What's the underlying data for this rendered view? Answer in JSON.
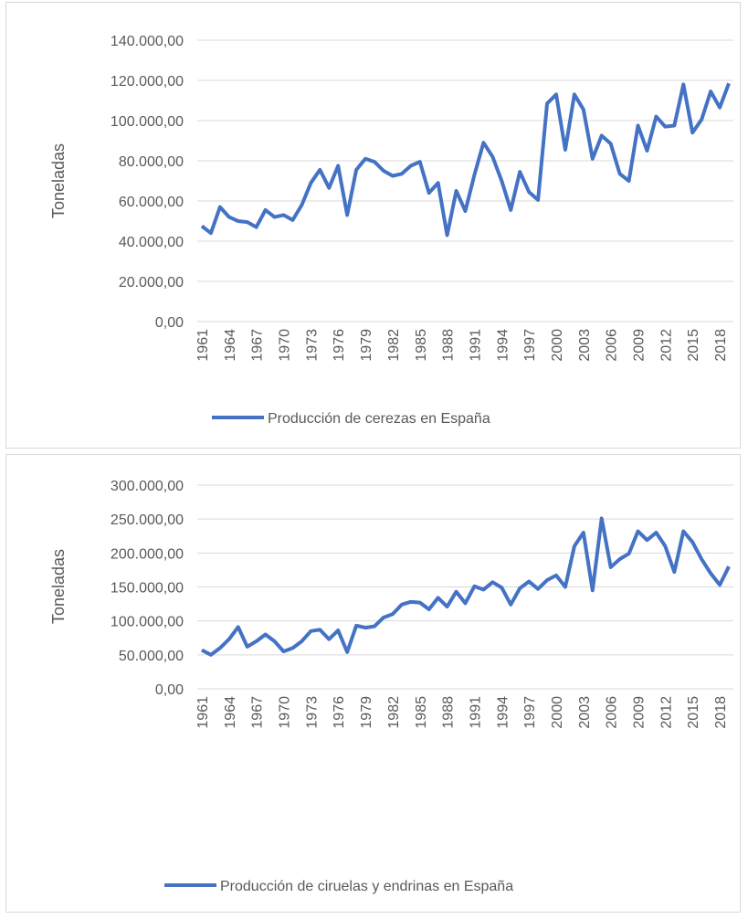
{
  "chart_data": [
    {
      "type": "line",
      "y_label": "Toneladas",
      "grid": true,
      "legend": "bottom",
      "categories": [
        "1961",
        null,
        null,
        "1964",
        null,
        null,
        "1967",
        null,
        null,
        "1970",
        null,
        null,
        "1973",
        null,
        null,
        "1976",
        null,
        null,
        "1979",
        null,
        null,
        "1982",
        null,
        null,
        "1985",
        null,
        null,
        "1988",
        null,
        null,
        "1991",
        null,
        null,
        "1994",
        null,
        null,
        "1997",
        null,
        null,
        "2000",
        null,
        null,
        "2003",
        null,
        null,
        "2006",
        null,
        null,
        "2009",
        null,
        null,
        "2012",
        null,
        null,
        "2015",
        null,
        null,
        "2018",
        null
      ],
      "ylim": [
        0,
        140000
      ],
      "yticks": [
        {
          "value": 0,
          "label": "0,00"
        },
        {
          "value": 20000,
          "label": "20.000,00"
        },
        {
          "value": 40000,
          "label": "40.000,00"
        },
        {
          "value": 60000,
          "label": "60.000,00"
        },
        {
          "value": 80000,
          "label": "80.000,00"
        },
        {
          "value": 100000,
          "label": "100.000,00"
        },
        {
          "value": 120000,
          "label": "120.000,00"
        },
        {
          "value": 140000,
          "label": "140.000,00"
        }
      ],
      "series": [
        {
          "name": "Producción de cerezas en España",
          "color": "#4472c4",
          "values": [
            47500,
            44000,
            57000,
            52000,
            50000,
            49500,
            47000,
            55500,
            52000,
            53000,
            50500,
            58000,
            69000,
            75500,
            66500,
            77500,
            53000,
            75500,
            81000,
            79500,
            75000,
            72500,
            73500,
            77500,
            79500,
            64000,
            69000,
            43000,
            65000,
            55000,
            73000,
            89000,
            82000,
            70000,
            55500,
            74500,
            64500,
            60500,
            108500,
            113000,
            85500,
            113000,
            105500,
            81000,
            92500,
            88500,
            73500,
            70000,
            97500,
            85000,
            102000,
            97000,
            97500,
            118000,
            94000,
            100500,
            114500,
            106500,
            118500
          ]
        }
      ]
    },
    {
      "type": "line",
      "y_label": "Toneladas",
      "grid": true,
      "legend": "bottom",
      "categories": [
        "1961",
        null,
        null,
        "1964",
        null,
        null,
        "1967",
        null,
        null,
        "1970",
        null,
        null,
        "1973",
        null,
        null,
        "1976",
        null,
        null,
        "1979",
        null,
        null,
        "1982",
        null,
        null,
        "1985",
        null,
        null,
        "1988",
        null,
        null,
        "1991",
        null,
        null,
        "1994",
        null,
        null,
        "1997",
        null,
        null,
        "2000",
        null,
        null,
        "2003",
        null,
        null,
        "2006",
        null,
        null,
        "2009",
        null,
        null,
        "2012",
        null,
        null,
        "2015",
        null,
        null,
        "2018",
        null
      ],
      "ylim": [
        0,
        300000
      ],
      "yticks": [
        {
          "value": 0,
          "label": "0,00"
        },
        {
          "value": 50000,
          "label": "50.000,00"
        },
        {
          "value": 100000,
          "label": "100.000,00"
        },
        {
          "value": 150000,
          "label": "150.000,00"
        },
        {
          "value": 200000,
          "label": "200.000,00"
        },
        {
          "value": 250000,
          "label": "250.000,00"
        },
        {
          "value": 300000,
          "label": "300.000,00"
        }
      ],
      "series": [
        {
          "name": "Producción de ciruelas y endrinas en España",
          "color": "#4472c4",
          "values": [
            57000,
            50000,
            60000,
            73000,
            91000,
            62000,
            70000,
            80000,
            70000,
            55000,
            60000,
            70000,
            85000,
            87000,
            73000,
            86000,
            54000,
            93000,
            90000,
            92000,
            105000,
            110000,
            124000,
            128000,
            127000,
            117000,
            134000,
            121000,
            143000,
            126000,
            151000,
            146000,
            157000,
            149000,
            124000,
            148000,
            158000,
            147000,
            160000,
            167000,
            150000,
            210000,
            230000,
            145000,
            251000,
            179000,
            191000,
            199000,
            232000,
            219000,
            230000,
            210000,
            172000,
            232000,
            216000,
            191000,
            170000,
            153000,
            180000
          ]
        }
      ]
    }
  ]
}
